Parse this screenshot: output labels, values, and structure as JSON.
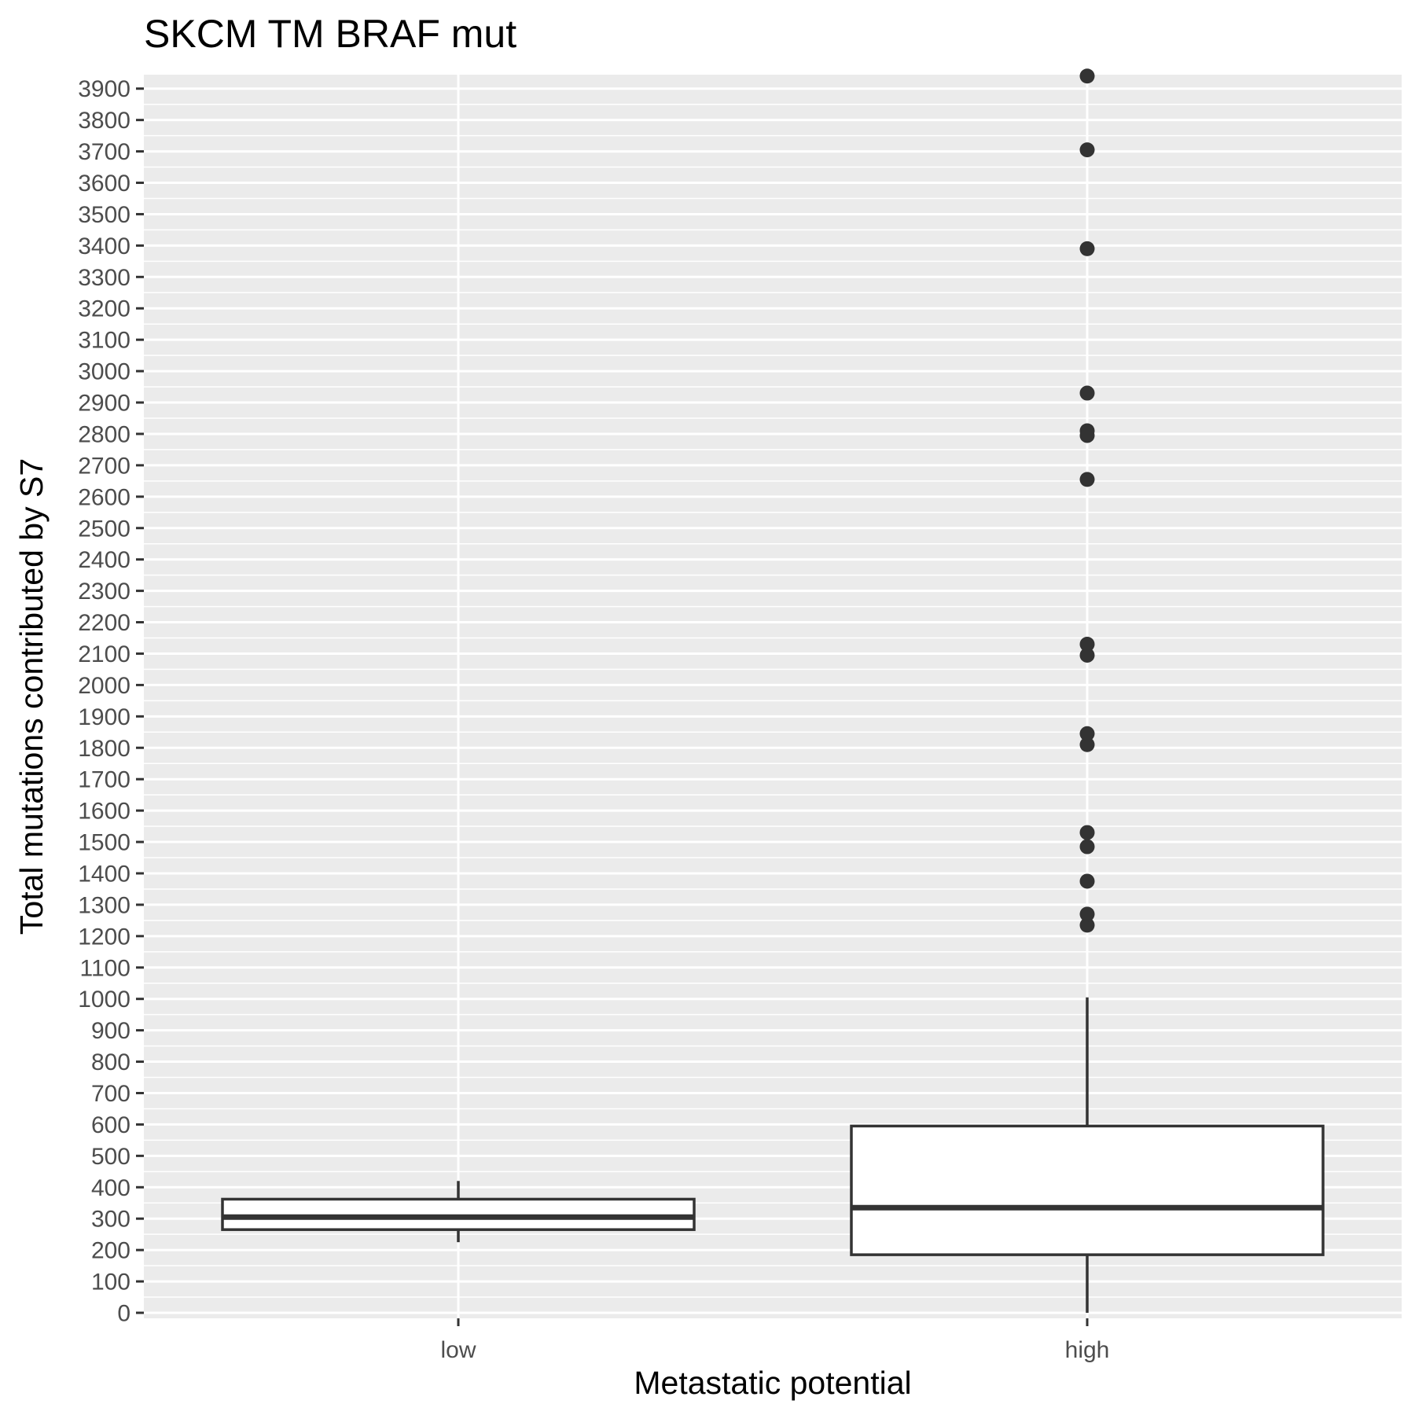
{
  "chart_data": {
    "type": "boxplot",
    "title": "SKCM TM BRAF mut",
    "xlabel": "Metastatic potential",
    "ylabel": "Total mutations contributed by S7",
    "categories": [
      "low",
      "high"
    ],
    "ylim": [
      0,
      3950
    ],
    "yticks": [
      0,
      100,
      200,
      300,
      400,
      500,
      600,
      700,
      800,
      900,
      1000,
      1100,
      1200,
      1300,
      1400,
      1500,
      1600,
      1700,
      1800,
      1900,
      2000,
      2100,
      2200,
      2300,
      2400,
      2500,
      2600,
      2700,
      2800,
      2900,
      3000,
      3100,
      3200,
      3300,
      3400,
      3500,
      3600,
      3700,
      3800,
      3900
    ],
    "grid": true,
    "legend": "none",
    "boxes": [
      {
        "category": "low",
        "whisker_low": 225,
        "q1": 265,
        "median": 305,
        "q3": 362,
        "whisker_high": 420,
        "outliers": []
      },
      {
        "category": "high",
        "whisker_low": 0,
        "q1": 185,
        "median": 335,
        "q3": 595,
        "whisker_high": 1005,
        "outliers": [
          1235,
          1270,
          1375,
          1485,
          1530,
          1810,
          1845,
          2095,
          2130,
          2655,
          2795,
          2810,
          2930,
          3390,
          3705,
          3940
        ]
      }
    ],
    "colors": {
      "panel": "#ebebeb",
      "grid": "#ffffff",
      "box_fill": "#ffffff",
      "box_line": "#333333",
      "point": "#333333",
      "tick": "#4d4d4d"
    }
  }
}
